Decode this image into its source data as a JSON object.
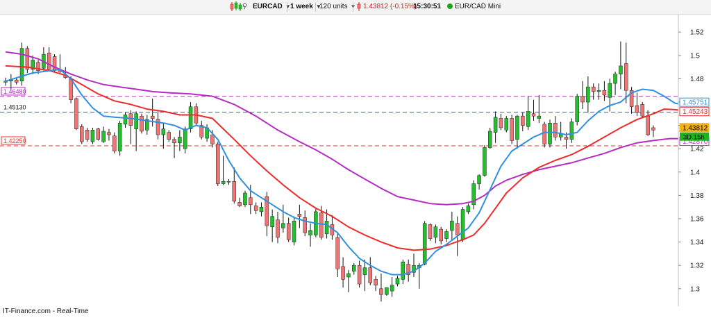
{
  "toolbar": {
    "symbol": "EURCAD",
    "period": "1 week",
    "units": "120 units",
    "price_text": "1.43812 (-0.15%)",
    "time": "15:30:51",
    "instrument": "EUR/CAD Mini"
  },
  "footer": {
    "source": "IT-Finance.com - Real-Time"
  },
  "colors": {
    "bull": "#22c02a",
    "bear": "#f07474",
    "wick": "#111111",
    "ma_fast": "#2f8fe0",
    "ma_mid": "#ee2a2a",
    "ma_slow": "#b52cc2",
    "level_purple": "#b52cc2",
    "level_blue": "#3a4fd6",
    "level_red": "#ee3030"
  },
  "chart_data": {
    "type": "candlestick",
    "ylim": [
      1.285,
      1.535
    ],
    "y_ticks": [
      "1.52",
      "1.5",
      "1.48",
      "1.46",
      "1.44",
      "1.42",
      "1.4",
      "1.38",
      "1.36",
      "1.34",
      "1.32",
      "1.3"
    ],
    "candles": [
      [
        1.477,
        1.481,
        1.474,
        1.478
      ],
      [
        1.478,
        1.484,
        1.471,
        1.479
      ],
      [
        1.479,
        1.481,
        1.475,
        1.477
      ],
      [
        1.478,
        1.511,
        1.474,
        1.506
      ],
      [
        1.506,
        1.508,
        1.485,
        1.488
      ],
      [
        1.488,
        1.5,
        1.484,
        1.496
      ],
      [
        1.494,
        1.496,
        1.484,
        1.487
      ],
      [
        1.489,
        1.507,
        1.487,
        1.501
      ],
      [
        1.502,
        1.507,
        1.487,
        1.488
      ],
      [
        1.499,
        1.501,
        1.486,
        1.488
      ],
      [
        1.488,
        1.501,
        1.485,
        1.486
      ],
      [
        1.483,
        1.49,
        1.48,
        1.481
      ],
      [
        1.48,
        1.482,
        1.459,
        1.462
      ],
      [
        1.463,
        1.464,
        1.436,
        1.437
      ],
      [
        1.439,
        1.441,
        1.424,
        1.426
      ],
      [
        1.436,
        1.438,
        1.426,
        1.428
      ],
      [
        1.426,
        1.438,
        1.424,
        1.436
      ],
      [
        1.437,
        1.438,
        1.427,
        1.428
      ],
      [
        1.426,
        1.439,
        1.425,
        1.435
      ],
      [
        1.434,
        1.437,
        1.427,
        1.432
      ],
      [
        1.431,
        1.434,
        1.416,
        1.418
      ],
      [
        1.418,
        1.444,
        1.414,
        1.442
      ],
      [
        1.441,
        1.451,
        1.438,
        1.449
      ],
      [
        1.45,
        1.453,
        1.424,
        1.44
      ],
      [
        1.437,
        1.452,
        1.418,
        1.45
      ],
      [
        1.448,
        1.45,
        1.433,
        1.435
      ],
      [
        1.436,
        1.449,
        1.432,
        1.445
      ],
      [
        1.448,
        1.463,
        1.439,
        1.446
      ],
      [
        1.445,
        1.452,
        1.428,
        1.432
      ],
      [
        1.432,
        1.442,
        1.42,
        1.437
      ],
      [
        1.434,
        1.436,
        1.426,
        1.428
      ],
      [
        1.428,
        1.43,
        1.412,
        1.425
      ],
      [
        1.425,
        1.436,
        1.418,
        1.43
      ],
      [
        1.42,
        1.439,
        1.416,
        1.437
      ],
      [
        1.437,
        1.46,
        1.434,
        1.456
      ],
      [
        1.456,
        1.459,
        1.44,
        1.442
      ],
      [
        1.44,
        1.444,
        1.428,
        1.43
      ],
      [
        1.429,
        1.441,
        1.426,
        1.438
      ],
      [
        1.432,
        1.436,
        1.421,
        1.424
      ],
      [
        1.424,
        1.426,
        1.388,
        1.39
      ],
      [
        1.39,
        1.414,
        1.389,
        1.392
      ],
      [
        1.392,
        1.394,
        1.389,
        1.392
      ],
      [
        1.392,
        1.404,
        1.373,
        1.375
      ],
      [
        1.374,
        1.378,
        1.37,
        1.371
      ],
      [
        1.372,
        1.384,
        1.37,
        1.382
      ],
      [
        1.378,
        1.389,
        1.364,
        1.372
      ],
      [
        1.371,
        1.374,
        1.364,
        1.367
      ],
      [
        1.366,
        1.374,
        1.362,
        1.37
      ],
      [
        1.379,
        1.383,
        1.345,
        1.354
      ],
      [
        1.353,
        1.368,
        1.34,
        1.362
      ],
      [
        1.359,
        1.366,
        1.339,
        1.344
      ],
      [
        1.352,
        1.372,
        1.348,
        1.356
      ],
      [
        1.356,
        1.361,
        1.34,
        1.342
      ],
      [
        1.34,
        1.362,
        1.337,
        1.358
      ],
      [
        1.364,
        1.372,
        1.352,
        1.362
      ],
      [
        1.361,
        1.367,
        1.345,
        1.348
      ],
      [
        1.346,
        1.356,
        1.336,
        1.35
      ],
      [
        1.346,
        1.369,
        1.344,
        1.366
      ],
      [
        1.365,
        1.371,
        1.342,
        1.344
      ],
      [
        1.347,
        1.368,
        1.343,
        1.358
      ],
      [
        1.355,
        1.363,
        1.342,
        1.346
      ],
      [
        1.344,
        1.348,
        1.31,
        1.317
      ],
      [
        1.319,
        1.327,
        1.301,
        1.308
      ],
      [
        1.31,
        1.316,
        1.297,
        1.313
      ],
      [
        1.315,
        1.322,
        1.312,
        1.32
      ],
      [
        1.32,
        1.324,
        1.301,
        1.304
      ],
      [
        1.312,
        1.325,
        1.298,
        1.318
      ],
      [
        1.318,
        1.327,
        1.303,
        1.305
      ],
      [
        1.308,
        1.311,
        1.298,
        1.303
      ],
      [
        1.3,
        1.313,
        1.289,
        1.295
      ],
      [
        1.295,
        1.301,
        1.294,
        1.301
      ],
      [
        1.298,
        1.31,
        1.293,
        1.303
      ],
      [
        1.304,
        1.311,
        1.302,
        1.309
      ],
      [
        1.308,
        1.325,
        1.304,
        1.323
      ],
      [
        1.321,
        1.325,
        1.306,
        1.312
      ],
      [
        1.314,
        1.33,
        1.31,
        1.32
      ],
      [
        1.318,
        1.322,
        1.3,
        1.32
      ],
      [
        1.321,
        1.358,
        1.32,
        1.356
      ],
      [
        1.355,
        1.356,
        1.341,
        1.343
      ],
      [
        1.344,
        1.355,
        1.339,
        1.353
      ],
      [
        1.351,
        1.353,
        1.338,
        1.341
      ],
      [
        1.343,
        1.351,
        1.34,
        1.349
      ],
      [
        1.35,
        1.366,
        1.342,
        1.358
      ],
      [
        1.356,
        1.362,
        1.328,
        1.346
      ],
      [
        1.342,
        1.37,
        1.34,
        1.368
      ],
      [
        1.366,
        1.373,
        1.364,
        1.371
      ],
      [
        1.372,
        1.393,
        1.368,
        1.39
      ],
      [
        1.39,
        1.398,
        1.385,
        1.397
      ],
      [
        1.397,
        1.423,
        1.396,
        1.421
      ],
      [
        1.421,
        1.438,
        1.42,
        1.435
      ],
      [
        1.434,
        1.452,
        1.425,
        1.447
      ],
      [
        1.446,
        1.45,
        1.436,
        1.438
      ],
      [
        1.436,
        1.448,
        1.434,
        1.446
      ],
      [
        1.446,
        1.449,
        1.424,
        1.427
      ],
      [
        1.428,
        1.449,
        1.42,
        1.448
      ],
      [
        1.448,
        1.451,
        1.435,
        1.44
      ],
      [
        1.439,
        1.465,
        1.436,
        1.452
      ],
      [
        1.45,
        1.462,
        1.444,
        1.448
      ],
      [
        1.446,
        1.466,
        1.442,
        1.448
      ],
      [
        1.441,
        1.443,
        1.421,
        1.424
      ],
      [
        1.424,
        1.445,
        1.421,
        1.442
      ],
      [
        1.442,
        1.448,
        1.427,
        1.43
      ],
      [
        1.43,
        1.443,
        1.427,
        1.433
      ],
      [
        1.43,
        1.434,
        1.42,
        1.428
      ],
      [
        1.428,
        1.446,
        1.425,
        1.443
      ],
      [
        1.443,
        1.467,
        1.44,
        1.465
      ],
      [
        1.465,
        1.478,
        1.454,
        1.46
      ],
      [
        1.46,
        1.482,
        1.451,
        1.473
      ],
      [
        1.473,
        1.476,
        1.462,
        1.469
      ],
      [
        1.469,
        1.476,
        1.462,
        1.47
      ],
      [
        1.47,
        1.478,
        1.461,
        1.466
      ],
      [
        1.464,
        1.48,
        1.452,
        1.476
      ],
      [
        1.476,
        1.486,
        1.466,
        1.484
      ],
      [
        1.484,
        1.512,
        1.471,
        1.491
      ],
      [
        1.493,
        1.511,
        1.459,
        1.47
      ],
      [
        1.47,
        1.473,
        1.45,
        1.456
      ],
      [
        1.457,
        1.468,
        1.448,
        1.451
      ],
      [
        1.458,
        1.46,
        1.446,
        1.448
      ],
      [
        1.448,
        1.453,
        1.431,
        1.432
      ],
      [
        1.438,
        1.44,
        1.43,
        1.436
      ]
    ],
    "ma_fast": [
      [
        0,
        1.478
      ],
      [
        5,
        1.485
      ],
      [
        10,
        1.488
      ],
      [
        12,
        1.48
      ],
      [
        14,
        1.466
      ],
      [
        16,
        1.455
      ],
      [
        18,
        1.448
      ],
      [
        20,
        1.447
      ],
      [
        23,
        1.446
      ],
      [
        26,
        1.444
      ],
      [
        29,
        1.442
      ],
      [
        31,
        1.44
      ],
      [
        33,
        1.436
      ],
      [
        35,
        1.44
      ],
      [
        37,
        1.438
      ],
      [
        39,
        1.428
      ],
      [
        41,
        1.41
      ],
      [
        43,
        1.395
      ],
      [
        45,
        1.384
      ],
      [
        47,
        1.378
      ],
      [
        49,
        1.372
      ],
      [
        51,
        1.366
      ],
      [
        53,
        1.361
      ],
      [
        55,
        1.358
      ],
      [
        57,
        1.356
      ],
      [
        59,
        1.355
      ],
      [
        61,
        1.348
      ],
      [
        63,
        1.336
      ],
      [
        65,
        1.326
      ],
      [
        67,
        1.32
      ],
      [
        69,
        1.315
      ],
      [
        71,
        1.312
      ],
      [
        73,
        1.312
      ],
      [
        75,
        1.315
      ],
      [
        77,
        1.322
      ],
      [
        79,
        1.332
      ],
      [
        81,
        1.338
      ],
      [
        83,
        1.345
      ],
      [
        85,
        1.352
      ],
      [
        87,
        1.365
      ],
      [
        89,
        1.385
      ],
      [
        91,
        1.405
      ],
      [
        93,
        1.418
      ],
      [
        95,
        1.424
      ],
      [
        97,
        1.43
      ],
      [
        99,
        1.434
      ],
      [
        101,
        1.434
      ],
      [
        103,
        1.432
      ],
      [
        105,
        1.434
      ],
      [
        107,
        1.444
      ],
      [
        109,
        1.452
      ],
      [
        111,
        1.457
      ],
      [
        113,
        1.46
      ],
      [
        115,
        1.468
      ],
      [
        117,
        1.471
      ],
      [
        119,
        1.47
      ],
      [
        121,
        1.465
      ],
      [
        123,
        1.459
      ],
      [
        125,
        1.4575
      ]
    ],
    "ma_mid": [
      [
        0,
        1.491
      ],
      [
        4,
        1.49
      ],
      [
        8,
        1.487
      ],
      [
        11,
        1.483
      ],
      [
        14,
        1.475
      ],
      [
        17,
        1.467
      ],
      [
        20,
        1.461
      ],
      [
        23,
        1.458
      ],
      [
        26,
        1.454
      ],
      [
        29,
        1.452
      ],
      [
        32,
        1.449
      ],
      [
        35,
        1.449
      ],
      [
        38,
        1.446
      ],
      [
        40,
        1.437
      ],
      [
        42,
        1.428
      ],
      [
        45,
        1.414
      ],
      [
        48,
        1.401
      ],
      [
        51,
        1.389
      ],
      [
        54,
        1.378
      ],
      [
        57,
        1.369
      ],
      [
        60,
        1.362
      ],
      [
        63,
        1.353
      ],
      [
        66,
        1.346
      ],
      [
        69,
        1.34
      ],
      [
        72,
        1.335
      ],
      [
        75,
        1.333
      ],
      [
        78,
        1.334
      ],
      [
        81,
        1.337
      ],
      [
        84,
        1.342
      ],
      [
        86,
        1.346
      ],
      [
        88,
        1.356
      ],
      [
        90,
        1.369
      ],
      [
        92,
        1.382
      ],
      [
        95,
        1.395
      ],
      [
        98,
        1.404
      ],
      [
        101,
        1.41
      ],
      [
        104,
        1.415
      ],
      [
        107,
        1.422
      ],
      [
        110,
        1.43
      ],
      [
        113,
        1.438
      ],
      [
        116,
        1.445
      ],
      [
        119,
        1.45
      ],
      [
        121,
        1.454
      ],
      [
        123,
        1.4535
      ],
      [
        125,
        1.4524
      ]
    ],
    "ma_slow": [
      [
        0,
        1.503
      ],
      [
        3,
        1.501
      ],
      [
        6,
        1.497
      ],
      [
        9,
        1.49
      ],
      [
        12,
        1.484
      ],
      [
        15,
        1.479
      ],
      [
        18,
        1.475
      ],
      [
        21,
        1.473
      ],
      [
        24,
        1.471
      ],
      [
        27,
        1.469
      ],
      [
        30,
        1.468
      ],
      [
        34,
        1.467
      ],
      [
        38,
        1.465
      ],
      [
        42,
        1.458
      ],
      [
        46,
        1.448
      ],
      [
        50,
        1.436
      ],
      [
        54,
        1.426
      ],
      [
        57,
        1.419
      ],
      [
        60,
        1.411
      ],
      [
        63,
        1.402
      ],
      [
        66,
        1.394
      ],
      [
        69,
        1.386
      ],
      [
        72,
        1.379
      ],
      [
        75,
        1.376
      ],
      [
        78,
        1.373
      ],
      [
        81,
        1.372
      ],
      [
        84,
        1.373
      ],
      [
        86,
        1.375
      ],
      [
        88,
        1.38
      ],
      [
        90,
        1.388
      ],
      [
        92,
        1.393
      ],
      [
        95,
        1.398
      ],
      [
        98,
        1.402
      ],
      [
        101,
        1.405
      ],
      [
        104,
        1.408
      ],
      [
        107,
        1.412
      ],
      [
        110,
        1.416
      ],
      [
        113,
        1.421
      ],
      [
        116,
        1.425
      ],
      [
        119,
        1.427
      ],
      [
        122,
        1.4287
      ],
      [
        125,
        1.4287
      ]
    ],
    "h_levels": [
      {
        "value": 1.4648,
        "label": "1.46480",
        "color": "#b52cc2"
      },
      {
        "value": 1.4513,
        "label": "1.45130",
        "color": "#3a4fd6"
      },
      {
        "value": 1.4225,
        "label": "1.42250",
        "color": "#ee3030"
      }
    ],
    "right_labels": [
      {
        "value": 1.45751,
        "label": "1.45751",
        "color": "#2f8fe0",
        "style": "outline"
      },
      {
        "value": 1.45243,
        "label": "1.45243",
        "color": "#ee2a2a",
        "style": "outline"
      },
      {
        "value": 1.43812,
        "label": "1.43812",
        "color": "#f2b31b",
        "style": "filled"
      },
      {
        "value": 1.4287,
        "label": "1.42870",
        "color": "#b52cc2",
        "style": "outline"
      }
    ],
    "countdown": "3D 15h"
  }
}
